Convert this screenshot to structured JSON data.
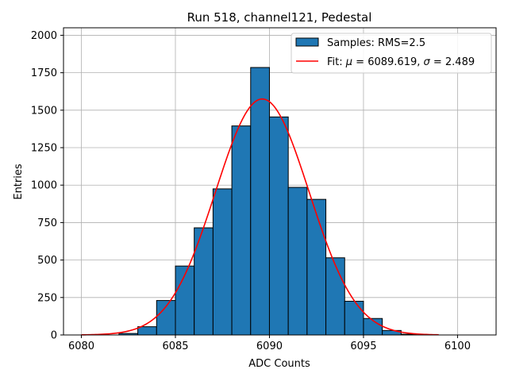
{
  "chart_data": {
    "type": "bar",
    "title": "Run 518, channel121, Pedestal",
    "xlabel": "ADC Counts",
    "ylabel": "Entries",
    "xlim": [
      6079.05,
      6102.05
    ],
    "ylim": [
      0,
      2050
    ],
    "xticks": [
      6080,
      6085,
      6090,
      6095,
      6100
    ],
    "yticks": [
      0,
      250,
      500,
      750,
      1000,
      1250,
      1500,
      1750,
      2000
    ],
    "grid": true,
    "legend_position": "top-right",
    "bin_width": 1,
    "series": [
      {
        "name": "Samples: RMS=2.5",
        "kind": "histogram",
        "color": "#1f77b4",
        "edgecolor": "#000000",
        "bins": [
          {
            "x0": 6082,
            "count": 10
          },
          {
            "x0": 6083,
            "count": 55
          },
          {
            "x0": 6084,
            "count": 230
          },
          {
            "x0": 6085,
            "count": 460
          },
          {
            "x0": 6086,
            "count": 715
          },
          {
            "x0": 6087,
            "count": 975
          },
          {
            "x0": 6088,
            "count": 1395
          },
          {
            "x0": 6089,
            "count": 1785
          },
          {
            "x0": 6090,
            "count": 1455
          },
          {
            "x0": 6091,
            "count": 985
          },
          {
            "x0": 6092,
            "count": 905
          },
          {
            "x0": 6093,
            "count": 515
          },
          {
            "x0": 6094,
            "count": 225
          },
          {
            "x0": 6095,
            "count": 110
          },
          {
            "x0": 6096,
            "count": 30
          },
          {
            "x0": 6097,
            "count": 5
          }
        ]
      },
      {
        "name": "Fit: μ = 6089.619, σ = 2.489",
        "legend_parts": [
          "Fit: ",
          "μ",
          " = 6089.619, ",
          "σ",
          " = 2.489"
        ],
        "kind": "gaussian_fit",
        "color": "#ff0000",
        "mu": 6089.619,
        "sigma": 2.489,
        "peak": 1575,
        "x_range": [
          6080,
          6099
        ]
      }
    ]
  }
}
